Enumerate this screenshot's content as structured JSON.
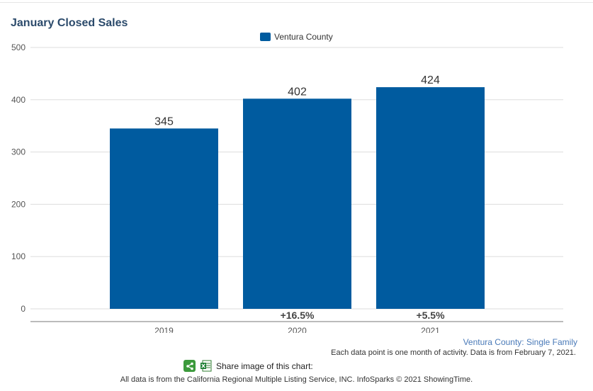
{
  "chart_data": {
    "type": "bar",
    "title": "January Closed Sales",
    "categories": [
      "2019",
      "2020",
      "2021"
    ],
    "series": [
      {
        "name": "Ventura County",
        "values": [
          345,
          402,
          424
        ],
        "color": "#005b9f"
      }
    ],
    "data_labels": [
      "345",
      "402",
      "424"
    ],
    "change_labels": [
      "",
      "+16.5%",
      "+5.5%"
    ],
    "yticks": [
      "0",
      "100",
      "200",
      "300",
      "400",
      "500"
    ],
    "ylim": [
      0,
      500
    ],
    "xlabel": "",
    "ylabel": "",
    "grid": true,
    "legend": "top-center"
  },
  "region_link": "Ventura County: Single Family",
  "note": "Each data point is one month of activity. Data is from February 7, 2021.",
  "share_label": "Share image of this chart:",
  "share_icon": "share-icon",
  "excel_icon": "excel-icon",
  "footer": "All data is from the California Regional Multiple Listing Service, INC. InfoSparks © 2021 ShowingTime."
}
